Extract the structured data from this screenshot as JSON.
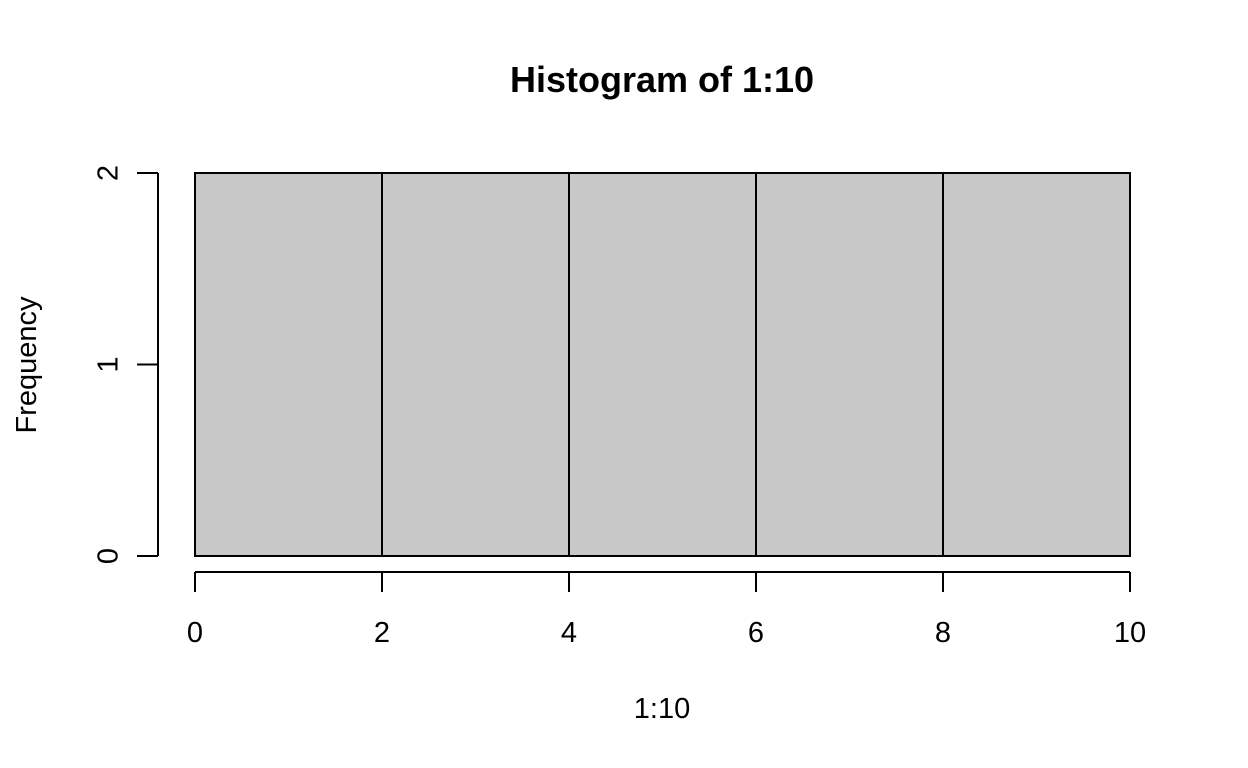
{
  "chart_data": {
    "type": "bar",
    "title": "Histogram of 1:10",
    "xlabel": "1:10",
    "ylabel": "Frequency",
    "bins": [
      {
        "start": 0,
        "end": 2,
        "count": 2
      },
      {
        "start": 2,
        "end": 4,
        "count": 2
      },
      {
        "start": 4,
        "end": 6,
        "count": 2
      },
      {
        "start": 6,
        "end": 8,
        "count": 2
      },
      {
        "start": 8,
        "end": 10,
        "count": 2
      }
    ],
    "x_ticks": [
      0,
      2,
      4,
      6,
      8,
      10
    ],
    "y_ticks": [
      0,
      1,
      2
    ],
    "xlim": [
      0,
      10
    ],
    "ylim": [
      0,
      2
    ],
    "bar_color": "#c8c8c8",
    "grid": false,
    "legend": "none"
  }
}
